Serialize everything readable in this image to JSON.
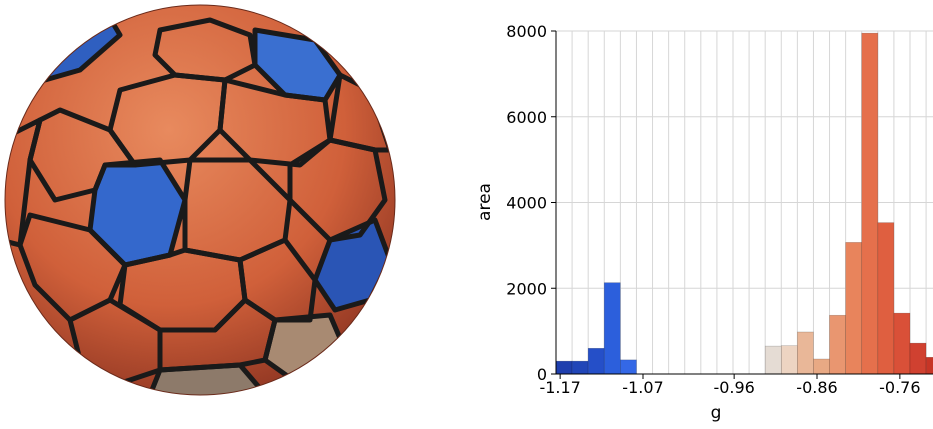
{
  "chart_data": {
    "type": "bar",
    "xlabel": "g",
    "ylabel": "area",
    "xlim": [
      -1.175,
      -0.72
    ],
    "ylim": [
      0,
      8000
    ],
    "x_ticks": [
      -1.17,
      -1.07,
      -0.96,
      -0.86,
      -0.76
    ],
    "x_tick_labels": [
      "-1.17",
      "-1.07",
      "-0.96",
      "-0.86",
      "-0.76"
    ],
    "y_ticks": [
      0,
      2000,
      4000,
      6000,
      8000
    ],
    "y_tick_labels": [
      "0",
      "2000",
      "4000",
      "6000",
      "8000"
    ],
    "grid": true,
    "bin_width": 0.01942,
    "bins": [
      {
        "x": -1.1653,
        "value": 300,
        "color": "#1f3fae"
      },
      {
        "x": -1.1459,
        "value": 300,
        "color": "#2146b8"
      },
      {
        "x": -1.1265,
        "value": 600,
        "color": "#254fc8"
      },
      {
        "x": -1.1071,
        "value": 2130,
        "color": "#2c5fdc"
      },
      {
        "x": -1.0876,
        "value": 330,
        "color": "#3468e6"
      },
      {
        "x": -0.9128,
        "value": 650,
        "color": "#e5dcd4"
      },
      {
        "x": -0.8934,
        "value": 660,
        "color": "#edd4c2"
      },
      {
        "x": -0.874,
        "value": 980,
        "color": "#e9b798"
      },
      {
        "x": -0.8546,
        "value": 350,
        "color": "#e8a984"
      },
      {
        "x": -0.8352,
        "value": 1370,
        "color": "#e99670"
      },
      {
        "x": -0.8157,
        "value": 3070,
        "color": "#e8845c"
      },
      {
        "x": -0.7963,
        "value": 7950,
        "color": "#e5704c"
      },
      {
        "x": -0.7769,
        "value": 3530,
        "color": "#df5f40"
      },
      {
        "x": -0.7575,
        "value": 1420,
        "color": "#d95038"
      },
      {
        "x": -0.7381,
        "value": 720,
        "color": "#d04130"
      },
      {
        "x": -0.7186,
        "value": 390,
        "color": "#c73526"
      }
    ]
  },
  "sphere": {
    "base_color": "#d8683f",
    "accent_color": "#2f66c8",
    "boundary_color": "#1a1a1a"
  }
}
